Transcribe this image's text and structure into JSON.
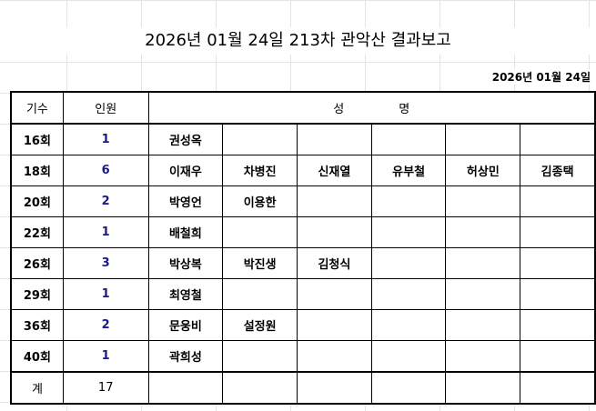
{
  "title": "2026년 01월 24일 213차 관악산 결과보고",
  "date": "2026년 01월 24일",
  "headers": {
    "gen": "기수",
    "count": "인원",
    "name1": "성",
    "name2": "명"
  },
  "rows": [
    {
      "gen": "16회",
      "count": "1",
      "names": [
        "권성옥",
        "",
        "",
        "",
        "",
        ""
      ]
    },
    {
      "gen": "18회",
      "count": "6",
      "names": [
        "이재우",
        "차병진",
        "신재열",
        "유부철",
        "허상민",
        "김종택"
      ]
    },
    {
      "gen": "20회",
      "count": "2",
      "names": [
        "박영언",
        "이용한",
        "",
        "",
        "",
        ""
      ]
    },
    {
      "gen": "22회",
      "count": "1",
      "names": [
        "배철희",
        "",
        "",
        "",
        "",
        ""
      ]
    },
    {
      "gen": "26회",
      "count": "3",
      "names": [
        "박상복",
        "박진생",
        "김청식",
        "",
        "",
        ""
      ]
    },
    {
      "gen": "29회",
      "count": "1",
      "names": [
        "최영철",
        "",
        "",
        "",
        "",
        ""
      ]
    },
    {
      "gen": "36회",
      "count": "2",
      "names": [
        "문웅비",
        "설정원",
        "",
        "",
        "",
        ""
      ]
    },
    {
      "gen": "40회",
      "count": "1",
      "names": [
        "곽희성",
        "",
        "",
        "",
        "",
        ""
      ]
    }
  ],
  "total": {
    "label": "계",
    "count": "17"
  }
}
